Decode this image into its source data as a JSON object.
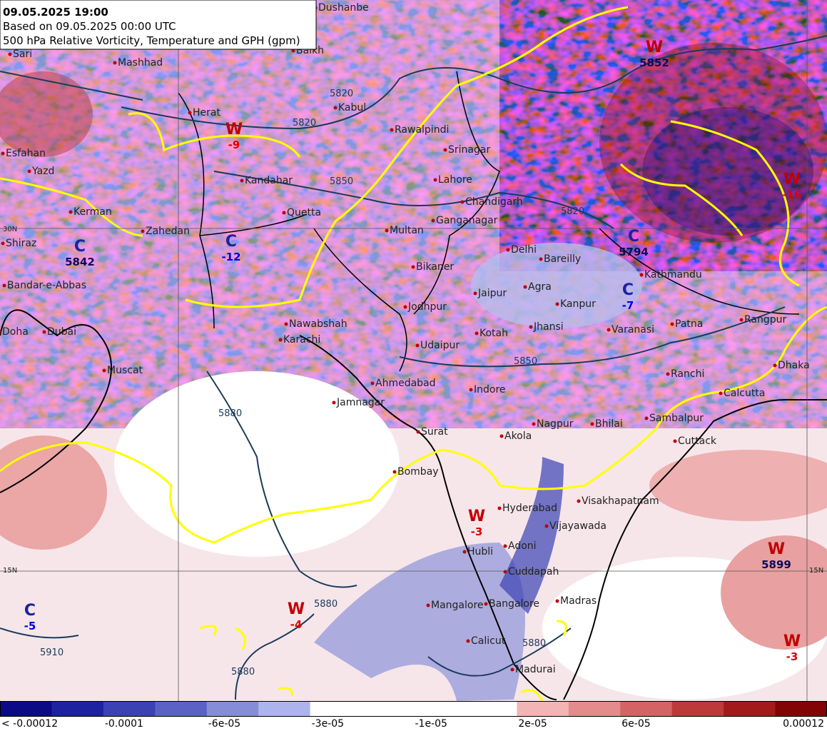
{
  "header": {
    "lines": [
      "09.05.2025 19:00",
      "Based on 09.05.2025 00:00 UTC",
      "500 hPa Relative Vorticity, Temperature and GPH (gpm)"
    ]
  },
  "cities": [
    "Dushanbe",
    "Sari",
    "Mashhad",
    "Balkh",
    "Herat",
    "Kabul",
    "Rawalpindi",
    "Srinagar",
    "Esfahan",
    "Yazd",
    "Kandahar",
    "Lahore",
    "Kerman",
    "Quetta",
    "Chandigarh",
    "Ganganagar",
    "Zahedan",
    "Shiraz",
    "Multan",
    "Delhi",
    "Bareilly",
    "Kathmandu",
    "Bikaner",
    "Bandar-e-Abbas",
    "Jaipur",
    "Agra",
    "Kanpur",
    "Jodhpur",
    "Nawabshah",
    "Jhansi",
    "Varanasi",
    "Patna",
    "Rangpur",
    "Doha",
    "Dubai",
    "Karachi",
    "Kotah",
    "Udaipur",
    "Muscat",
    "Ranchi",
    "Dhaka",
    "Ahmedabad",
    "Indore",
    "Calcutta",
    "Jamnagar",
    "Sambalpur",
    "Nagpur",
    "Bhilai",
    "Surat",
    "Akola",
    "Cuttack",
    "Bombay",
    "Visakhapatnam",
    "Hyderabad",
    "Vijayawada",
    "Adoni",
    "Hubli",
    "Cuddapah",
    "Mangalore",
    "Bangalore",
    "Madras",
    "Calicut",
    "Madurai"
  ],
  "markers": [
    {
      "letter": "W",
      "value": "-9"
    },
    {
      "letter": "C",
      "value": "5842"
    },
    {
      "letter": "C",
      "value": "-12"
    },
    {
      "letter": "W",
      "value": "5852"
    },
    {
      "letter": "C",
      "value": "5794"
    },
    {
      "letter": "C",
      "value": "-7"
    },
    {
      "letter": "W",
      "value": "-3"
    },
    {
      "letter": "W",
      "value": "-4"
    },
    {
      "letter": "C",
      "value": "-5"
    },
    {
      "letter": "W",
      "value": "5899"
    },
    {
      "letter": "W",
      "value": "-3"
    },
    {
      "letter": "W",
      "value": "-16"
    }
  ],
  "contour_labels": [
    "5820",
    "5850",
    "5880",
    "5880",
    "5850",
    "5910",
    "5880",
    "5820",
    "5880",
    "5820"
  ],
  "grid_labels": [
    "30N",
    "15N",
    "15N"
  ],
  "colorbar": {
    "colors": [
      "#0b0b86",
      "#1c22a0",
      "#3a42b4",
      "#5a62c4",
      "#858cd8",
      "#adb3ec",
      "#ffffff",
      "#ffffff",
      "#ffffff",
      "#ffffff",
      "#f2b4b4",
      "#e48c8c",
      "#d46464",
      "#bc3a3a",
      "#a21a1a",
      "#820404"
    ],
    "labels": [
      "< -0.00012",
      "-0.0001",
      "-6e-05",
      "-3e-05",
      "-1e-05",
      "2e-05",
      "6e-05",
      "0.00012"
    ]
  }
}
